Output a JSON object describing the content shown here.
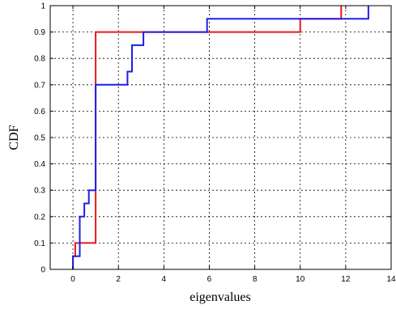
{
  "chart_data": {
    "type": "line",
    "step": true,
    "xlabel": "eigenvalues",
    "ylabel": "CDF",
    "xlim": [
      -1,
      14
    ],
    "ylim": [
      0,
      1
    ],
    "xticks": [
      0,
      2,
      4,
      6,
      8,
      10,
      12,
      14
    ],
    "yticks": [
      0,
      0.1,
      0.2,
      0.3,
      0.4,
      0.5,
      0.6,
      0.7,
      0.8,
      0.9,
      1
    ],
    "grid": true,
    "series": [
      {
        "color": "#e8171b",
        "points": [
          [
            0,
            0
          ],
          [
            0,
            0.05
          ],
          [
            0.1,
            0.05
          ],
          [
            0.1,
            0.1
          ],
          [
            1,
            0.1
          ],
          [
            1,
            0.9
          ],
          [
            10,
            0.9
          ],
          [
            10,
            0.95
          ],
          [
            11.8,
            0.95
          ],
          [
            11.8,
            1
          ]
        ]
      },
      {
        "color": "#1f1fe6",
        "points": [
          [
            0,
            0
          ],
          [
            0,
            0.05
          ],
          [
            0.3,
            0.05
          ],
          [
            0.3,
            0.2
          ],
          [
            0.5,
            0.2
          ],
          [
            0.5,
            0.25
          ],
          [
            0.7,
            0.25
          ],
          [
            0.7,
            0.3
          ],
          [
            1.0,
            0.3
          ],
          [
            1.0,
            0.7
          ],
          [
            2.4,
            0.7
          ],
          [
            2.4,
            0.75
          ],
          [
            2.6,
            0.75
          ],
          [
            2.6,
            0.85
          ],
          [
            3.1,
            0.85
          ],
          [
            3.1,
            0.9
          ],
          [
            5.9,
            0.9
          ],
          [
            5.9,
            0.95
          ],
          [
            13.0,
            0.95
          ],
          [
            13.0,
            1
          ]
        ]
      }
    ]
  }
}
